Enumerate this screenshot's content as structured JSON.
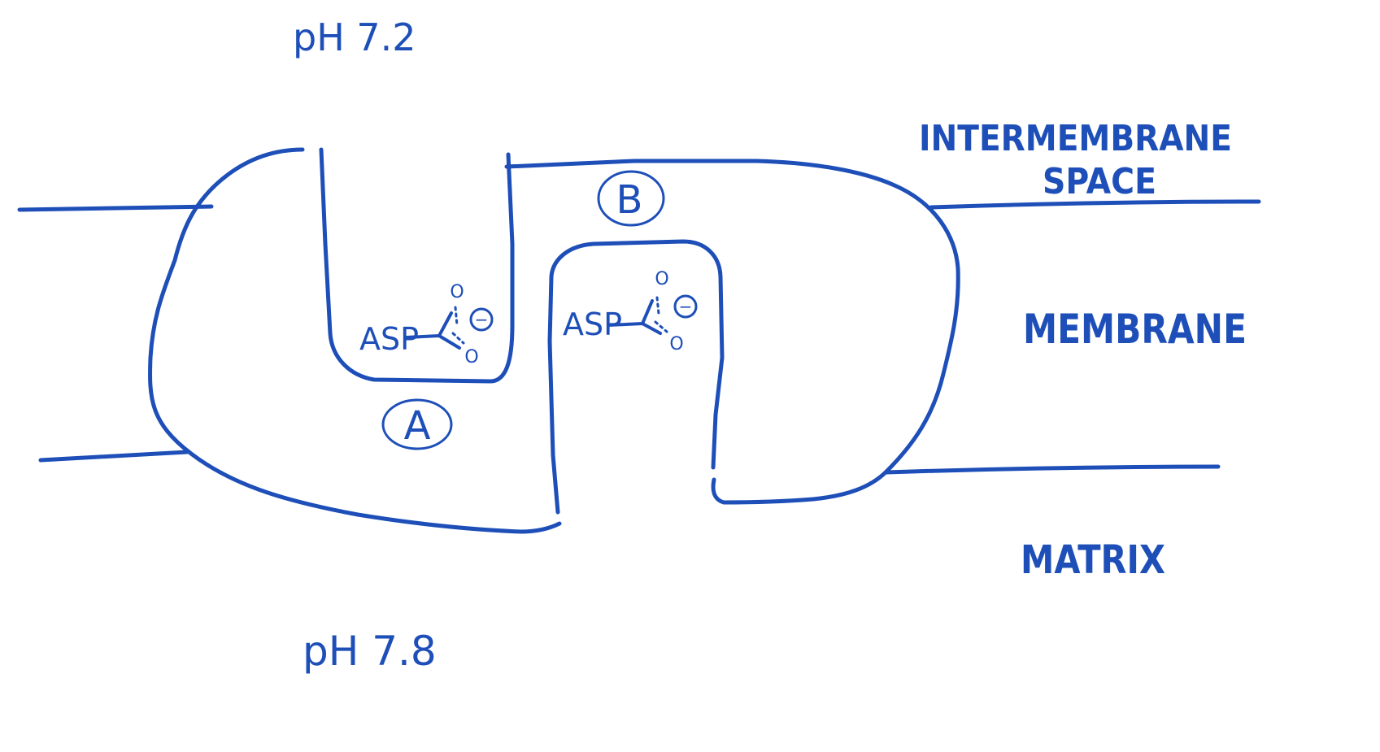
{
  "colors": {
    "ink": "#1e4fb8",
    "background": "#ffffff"
  },
  "labels": {
    "ph_top": "pH 7.2",
    "ph_bottom": "pH 7.8",
    "intermembrane_line1": "INTERMEMBRANE",
    "intermembrane_line2": "SPACE",
    "membrane": "MEMBRANE",
    "matrix": "MATRIX"
  },
  "channels": {
    "channel_a_label": "A",
    "channel_b_label": "B"
  },
  "residues": [
    {
      "name": "ASP",
      "charge": "−",
      "oxygen_top": "O",
      "oxygen_bottom": "O"
    },
    {
      "name": "ASP",
      "charge": "−",
      "oxygen_top": "O",
      "oxygen_bottom": "O"
    }
  ]
}
